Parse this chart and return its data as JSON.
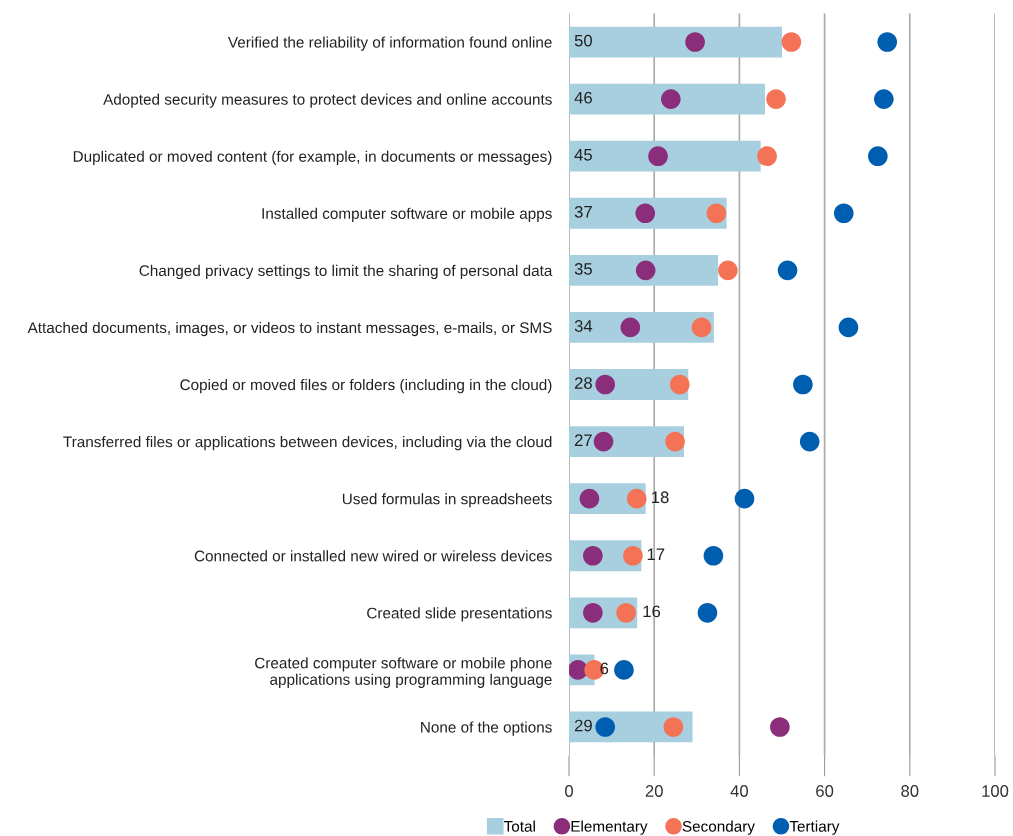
{
  "chart_data": {
    "type": "bar",
    "orientation": "horizontal",
    "categories": [
      "Verified the reliability of information found online",
      "Adopted security measures to protect devices and online accounts",
      "Duplicated or moved content (for example, in documents or messages)",
      "Installed computer software or mobile apps",
      "Changed privacy settings to limit the sharing of personal data",
      "Attached documents, images, or videos to instant messages, e-mails, or SMS",
      "Copied or moved files or folders (including in the cloud)",
      "Transferred files or applications between devices, including via the cloud",
      "Used formulas in spreadsheets",
      "Connected or installed new wired or wireless devices",
      "Created slide presentations",
      "Created computer software or mobile phone\napplications using programming language",
      "None of the options"
    ],
    "series": [
      {
        "name": "Total",
        "color": "#a8cfe0",
        "data_labels": true,
        "values": [
          50,
          46,
          45,
          37,
          35,
          34,
          28,
          27,
          18,
          17,
          16,
          6,
          29
        ]
      },
      {
        "name": "Elementary",
        "type": "scatter",
        "color": "#8a2d7a",
        "values": [
          29.6,
          23.9,
          20.9,
          17.9,
          18.0,
          14.4,
          8.5,
          8.1,
          4.8,
          5.6,
          5.6,
          2.1,
          49.5
        ]
      },
      {
        "name": "Secondary",
        "type": "scatter",
        "color": "#f47255",
        "values": [
          52.2,
          48.6,
          46.5,
          34.6,
          37.3,
          31.1,
          26.0,
          24.9,
          15.9,
          15.0,
          13.4,
          5.9,
          24.5
        ]
      },
      {
        "name": "Tertiary",
        "type": "scatter",
        "color": "#005eb0",
        "values": [
          74.7,
          73.9,
          72.5,
          64.5,
          51.3,
          65.6,
          54.9,
          56.5,
          41.2,
          33.9,
          32.5,
          12.9,
          8.5
        ]
      }
    ],
    "xlim": [
      0,
      100
    ],
    "xticks": [
      0,
      20,
      40,
      60,
      80,
      100
    ],
    "grid": "x",
    "legend": "bottom",
    "marker": "circle"
  }
}
